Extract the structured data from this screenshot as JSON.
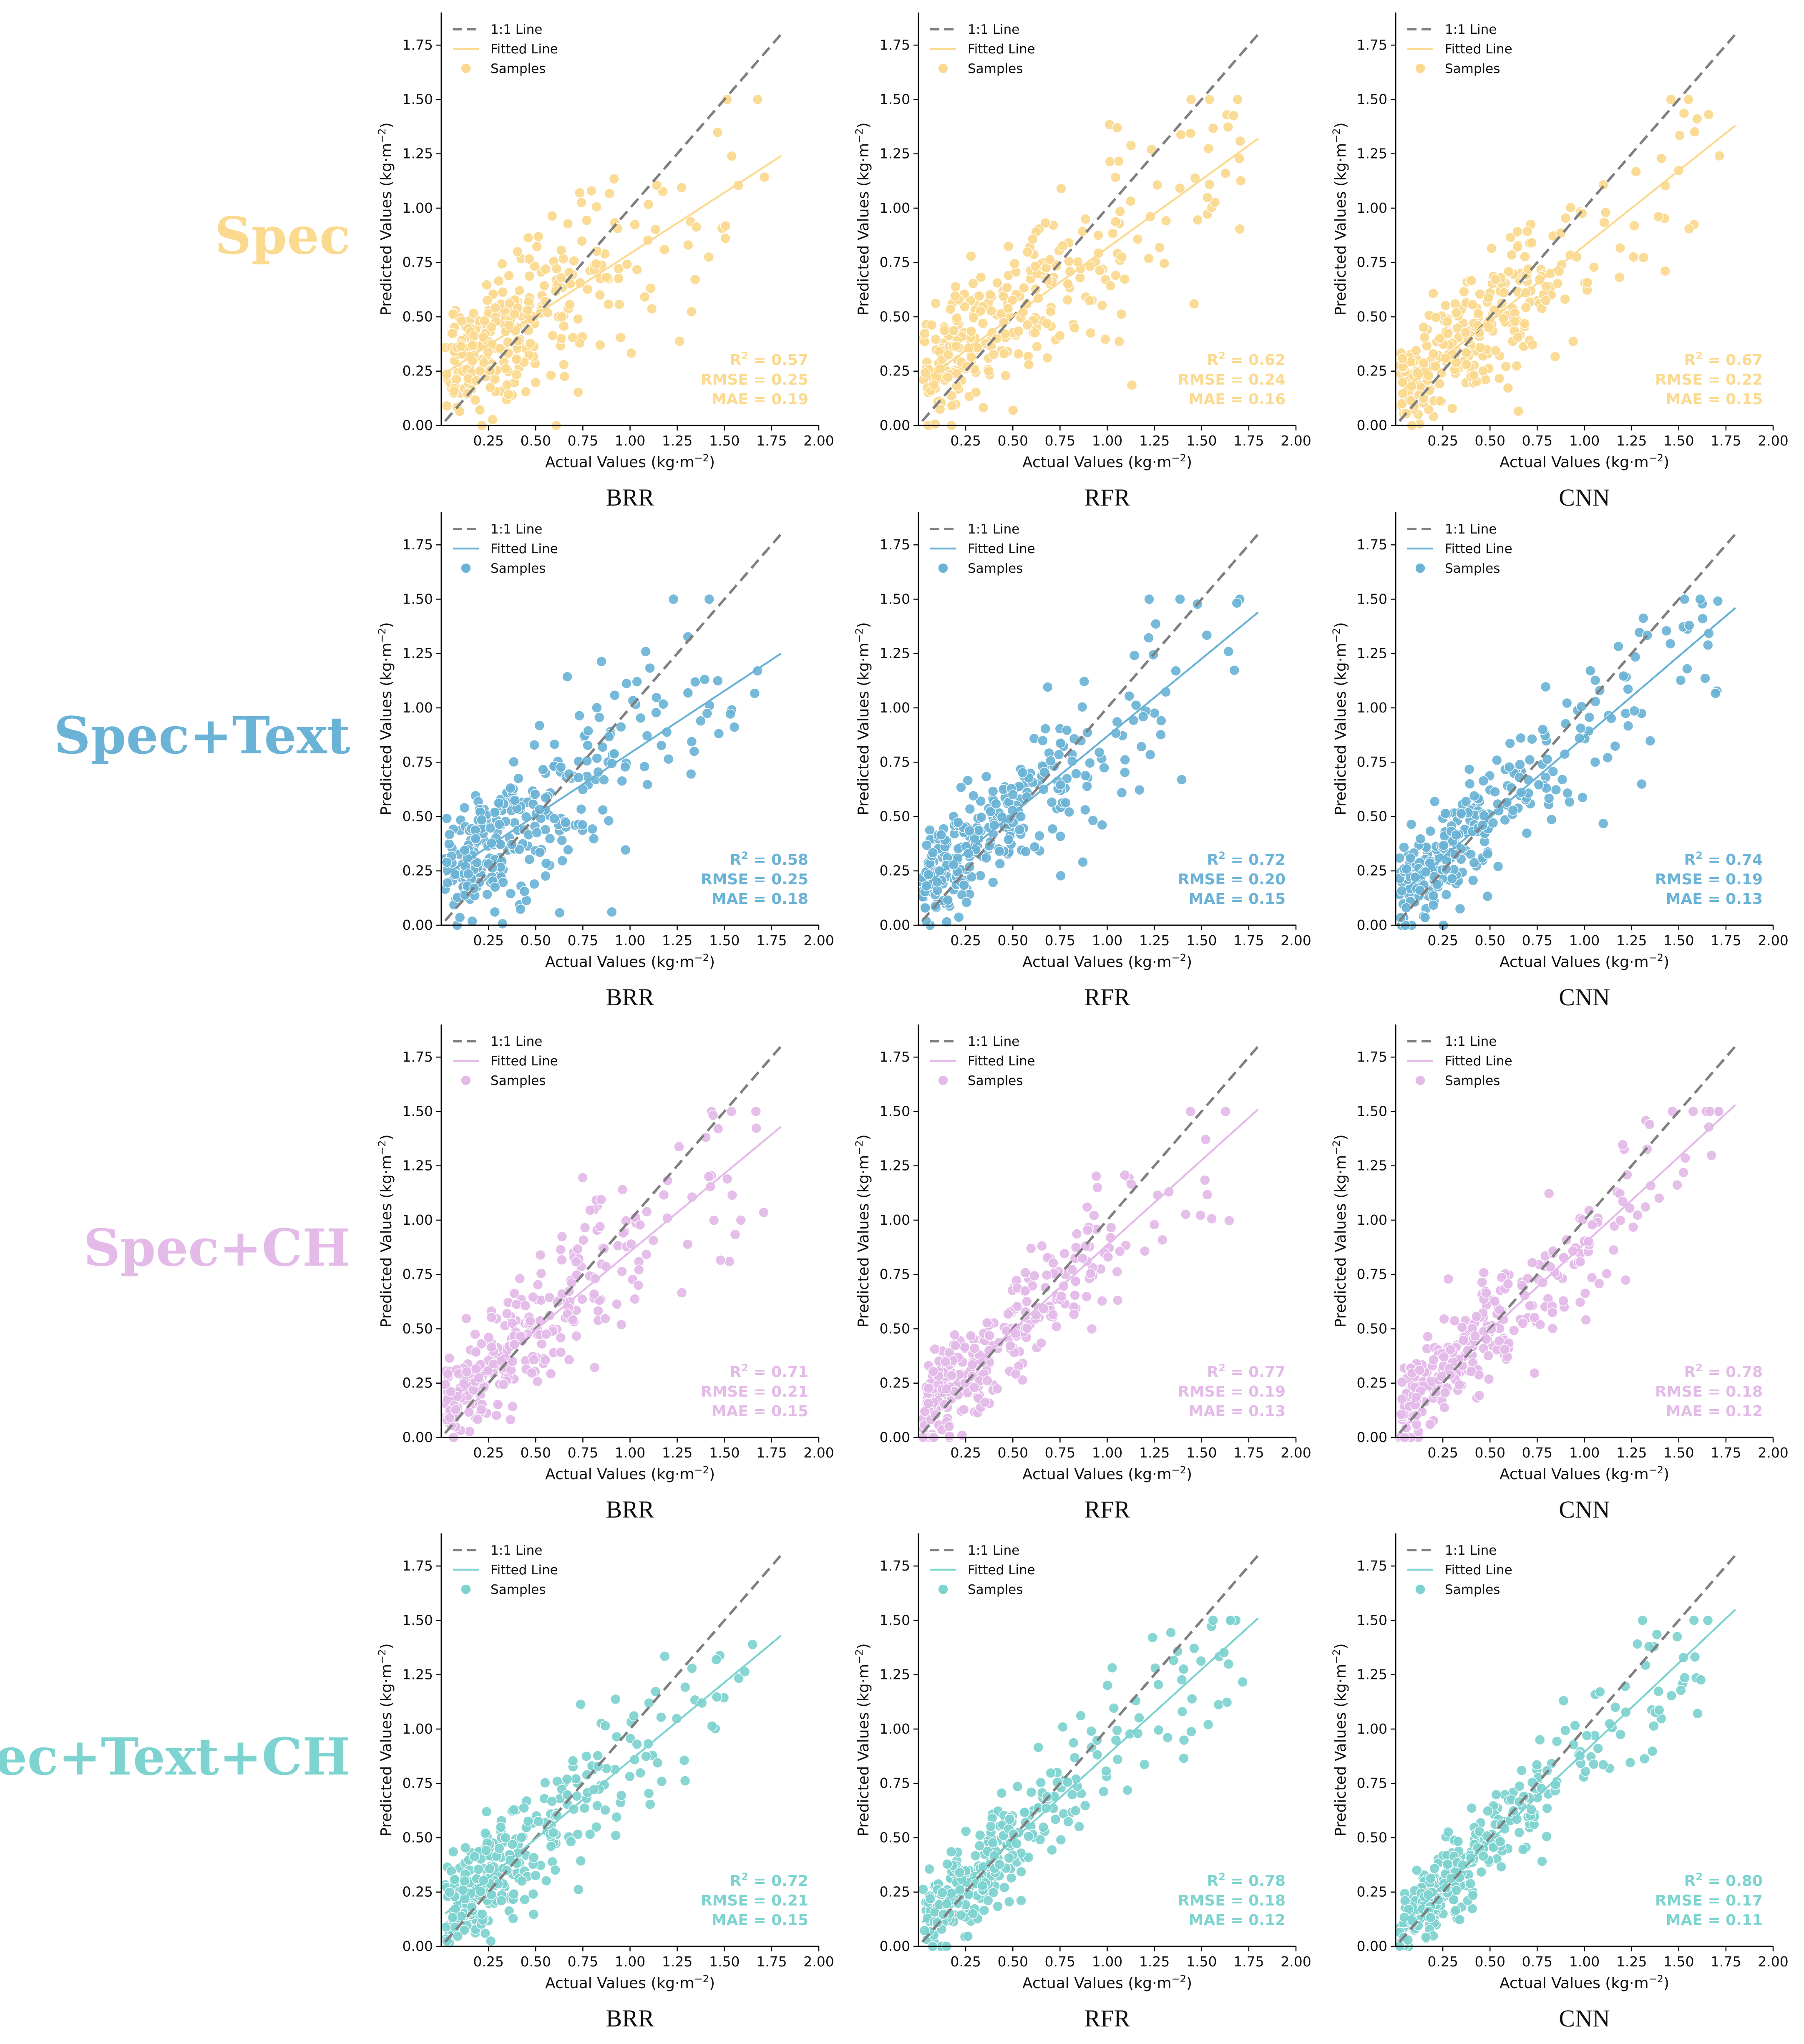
{
  "figure": {
    "rows": [
      {
        "label": "Spec",
        "color": "#FBD98E"
      },
      {
        "label": "Spec+Text",
        "color": "#6BB3D6"
      },
      {
        "label": "Spec+CH",
        "color": "#E3BAE8"
      },
      {
        "label": "Spec+Text+CH",
        "color": "#7DD3CF"
      }
    ],
    "models": [
      "BRR",
      "RFR",
      "CNN"
    ],
    "xlabel": "Actual Values (kg·m",
    "ylabel": "Predicted Values (kg·m",
    "unit_exponent": "−2",
    "legend": {
      "one_to_one": "1:1 Line",
      "fitted": "Fitted Line",
      "samples": "Samples"
    },
    "reference_line_color": "#7F7F7F"
  },
  "chart_data": [
    {
      "type": "scatter",
      "row": "Spec",
      "model": "BRR",
      "r2": "0.57",
      "rmse": "0.25",
      "mae": "0.19",
      "fit": {
        "x": [
          0.02,
          1.8
        ],
        "y": [
          0.24,
          1.24
        ]
      },
      "xlim": [
        0,
        2.0
      ],
      "ylim": [
        0,
        1.9
      ],
      "xticks": [
        "0.25",
        "0.50",
        "0.75",
        "1.00",
        "1.25",
        "1.50",
        "1.75",
        "2.00"
      ],
      "yticks": [
        "0.00",
        "0.25",
        "0.50",
        "0.75",
        "1.00",
        "1.25",
        "1.50",
        "1.75"
      ]
    },
    {
      "type": "scatter",
      "row": "Spec",
      "model": "RFR",
      "r2": "0.62",
      "rmse": "0.24",
      "mae": "0.16",
      "fit": {
        "x": [
          0.02,
          1.8
        ],
        "y": [
          0.2,
          1.32
        ]
      },
      "xlim": [
        0,
        2.0
      ],
      "ylim": [
        0,
        1.9
      ],
      "xticks": [
        "0.25",
        "0.50",
        "0.75",
        "1.00",
        "1.25",
        "1.50",
        "1.75",
        "2.00"
      ],
      "yticks": [
        "0.00",
        "0.25",
        "0.50",
        "0.75",
        "1.00",
        "1.25",
        "1.50",
        "1.75"
      ]
    },
    {
      "type": "scatter",
      "row": "Spec",
      "model": "CNN",
      "r2": "0.67",
      "rmse": "0.22",
      "mae": "0.15",
      "fit": {
        "x": [
          0.02,
          1.8
        ],
        "y": [
          0.15,
          1.38
        ]
      },
      "xlim": [
        0,
        2.0
      ],
      "ylim": [
        0,
        1.9
      ],
      "xticks": [
        "0.25",
        "0.50",
        "0.75",
        "1.00",
        "1.25",
        "1.50",
        "1.75",
        "2.00"
      ],
      "yticks": [
        "0.00",
        "0.25",
        "0.50",
        "0.75",
        "1.00",
        "1.25",
        "1.50",
        "1.75"
      ]
    },
    {
      "type": "scatter",
      "row": "Spec+Text",
      "model": "BRR",
      "r2": "0.58",
      "rmse": "0.25",
      "mae": "0.18",
      "fit": {
        "x": [
          0.02,
          1.8
        ],
        "y": [
          0.23,
          1.25
        ]
      },
      "xlim": [
        0,
        2.0
      ],
      "ylim": [
        0,
        1.9
      ],
      "xticks": [
        "0.25",
        "0.50",
        "0.75",
        "1.00",
        "1.25",
        "1.50",
        "1.75",
        "2.00"
      ],
      "yticks": [
        "0.00",
        "0.25",
        "0.50",
        "0.75",
        "1.00",
        "1.25",
        "1.50",
        "1.75"
      ]
    },
    {
      "type": "scatter",
      "row": "Spec+Text",
      "model": "RFR",
      "r2": "0.72",
      "rmse": "0.20",
      "mae": "0.15",
      "fit": {
        "x": [
          0.02,
          1.8
        ],
        "y": [
          0.17,
          1.44
        ]
      },
      "xlim": [
        0,
        2.0
      ],
      "ylim": [
        0,
        1.9
      ],
      "xticks": [
        "0.25",
        "0.50",
        "0.75",
        "1.00",
        "1.25",
        "1.50",
        "1.75",
        "2.00"
      ],
      "yticks": [
        "0.00",
        "0.25",
        "0.50",
        "0.75",
        "1.00",
        "1.25",
        "1.50",
        "1.75"
      ]
    },
    {
      "type": "scatter",
      "row": "Spec+Text",
      "model": "CNN",
      "r2": "0.74",
      "rmse": "0.19",
      "mae": "0.13",
      "fit": {
        "x": [
          0.02,
          1.8
        ],
        "y": [
          0.14,
          1.46
        ]
      },
      "xlim": [
        0,
        2.0
      ],
      "ylim": [
        0,
        1.9
      ],
      "xticks": [
        "0.25",
        "0.50",
        "0.75",
        "1.00",
        "1.25",
        "1.50",
        "1.75",
        "2.00"
      ],
      "yticks": [
        "0.00",
        "0.25",
        "0.50",
        "0.75",
        "1.00",
        "1.25",
        "1.50",
        "1.75"
      ]
    },
    {
      "type": "scatter",
      "row": "Spec+CH",
      "model": "BRR",
      "r2": "0.71",
      "rmse": "0.21",
      "mae": "0.15",
      "fit": {
        "x": [
          0.02,
          1.8
        ],
        "y": [
          0.15,
          1.43
        ]
      },
      "xlim": [
        0,
        2.0
      ],
      "ylim": [
        0,
        1.9
      ],
      "xticks": [
        "0.25",
        "0.50",
        "0.75",
        "1.00",
        "1.25",
        "1.50",
        "1.75",
        "2.00"
      ],
      "yticks": [
        "0.00",
        "0.25",
        "0.50",
        "0.75",
        "1.00",
        "1.25",
        "1.50",
        "1.75"
      ]
    },
    {
      "type": "scatter",
      "row": "Spec+CH",
      "model": "RFR",
      "r2": "0.77",
      "rmse": "0.19",
      "mae": "0.13",
      "fit": {
        "x": [
          0.02,
          1.8
        ],
        "y": [
          0.12,
          1.51
        ]
      },
      "xlim": [
        0,
        2.0
      ],
      "ylim": [
        0,
        1.9
      ],
      "xticks": [
        "0.25",
        "0.50",
        "0.75",
        "1.00",
        "1.25",
        "1.50",
        "1.75",
        "2.00"
      ],
      "yticks": [
        "0.00",
        "0.25",
        "0.50",
        "0.75",
        "1.00",
        "1.25",
        "1.50",
        "1.75"
      ]
    },
    {
      "type": "scatter",
      "row": "Spec+CH",
      "model": "CNN",
      "r2": "0.78",
      "rmse": "0.18",
      "mae": "0.12",
      "fit": {
        "x": [
          0.02,
          1.8
        ],
        "y": [
          0.11,
          1.53
        ]
      },
      "xlim": [
        0,
        2.0
      ],
      "ylim": [
        0,
        1.9
      ],
      "xticks": [
        "0.25",
        "0.50",
        "0.75",
        "1.00",
        "1.25",
        "1.50",
        "1.75",
        "2.00"
      ],
      "yticks": [
        "0.00",
        "0.25",
        "0.50",
        "0.75",
        "1.00",
        "1.25",
        "1.50",
        "1.75"
      ]
    },
    {
      "type": "scatter",
      "row": "Spec+Text+CH",
      "model": "BRR",
      "r2": "0.72",
      "rmse": "0.21",
      "mae": "0.15",
      "fit": {
        "x": [
          0.02,
          1.8
        ],
        "y": [
          0.15,
          1.43
        ]
      },
      "xlim": [
        0,
        2.0
      ],
      "ylim": [
        0,
        1.9
      ],
      "xticks": [
        "0.25",
        "0.50",
        "0.75",
        "1.00",
        "1.25",
        "1.50",
        "1.75",
        "2.00"
      ],
      "yticks": [
        "0.00",
        "0.25",
        "0.50",
        "0.75",
        "1.00",
        "1.25",
        "1.50",
        "1.75"
      ]
    },
    {
      "type": "scatter",
      "row": "Spec+Text+CH",
      "model": "RFR",
      "r2": "0.78",
      "rmse": "0.18",
      "mae": "0.12",
      "fit": {
        "x": [
          0.02,
          1.8
        ],
        "y": [
          0.11,
          1.51
        ]
      },
      "xlim": [
        0,
        2.0
      ],
      "ylim": [
        0,
        1.9
      ],
      "xticks": [
        "0.25",
        "0.50",
        "0.75",
        "1.00",
        "1.25",
        "1.50",
        "1.75",
        "2.00"
      ],
      "yticks": [
        "0.00",
        "0.25",
        "0.50",
        "0.75",
        "1.00",
        "1.25",
        "1.50",
        "1.75"
      ]
    },
    {
      "type": "scatter",
      "row": "Spec+Text+CH",
      "model": "CNN",
      "r2": "0.80",
      "rmse": "0.17",
      "mae": "0.11",
      "fit": {
        "x": [
          0.02,
          1.8
        ],
        "y": [
          0.09,
          1.55
        ]
      },
      "xlim": [
        0,
        2.0
      ],
      "ylim": [
        0,
        1.9
      ],
      "xticks": [
        "0.25",
        "0.50",
        "0.75",
        "1.00",
        "1.25",
        "1.50",
        "1.75",
        "2.00"
      ],
      "yticks": [
        "0.00",
        "0.25",
        "0.50",
        "0.75",
        "1.00",
        "1.25",
        "1.50",
        "1.75"
      ]
    }
  ]
}
